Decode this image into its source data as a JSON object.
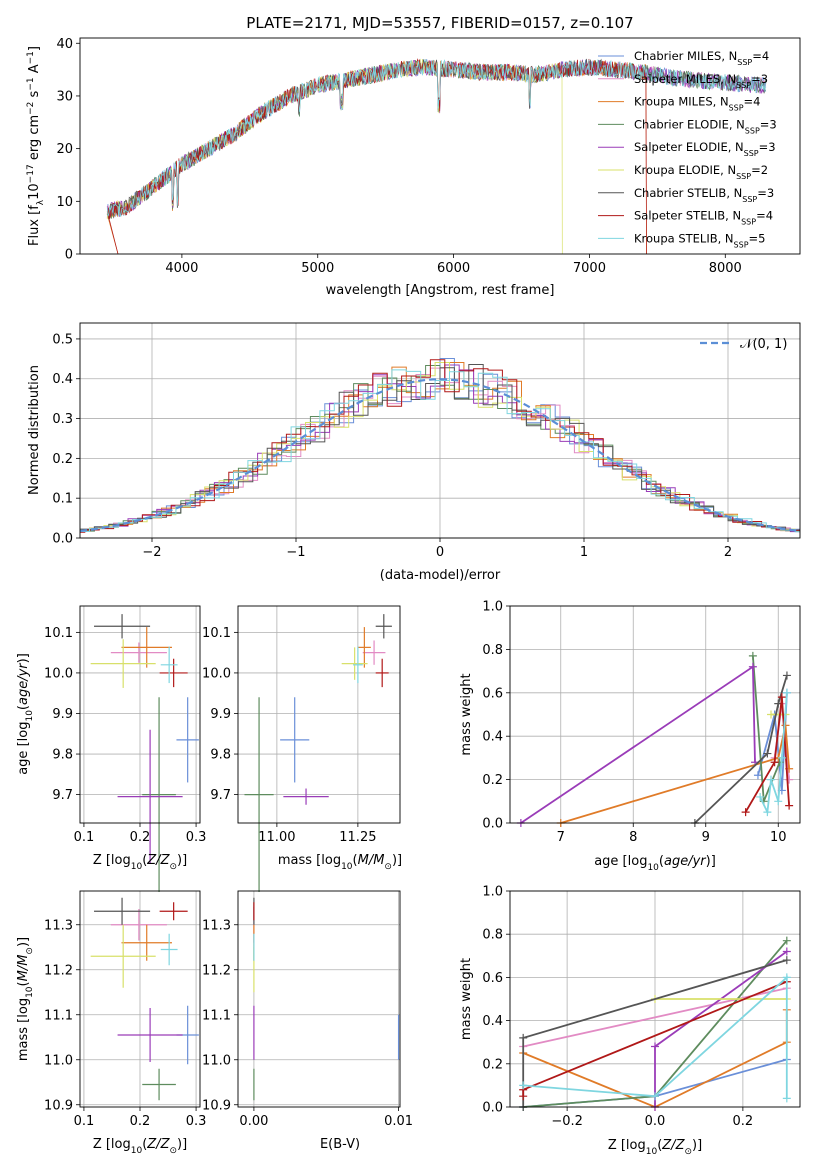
{
  "figure_title": "PLATE=2171, MJD=53557, FIBERID=0157, z=0.107",
  "legend_models": [
    {
      "name": "Chabrier MILES, N$_{SSP}$=4",
      "label": "Chabrier MILES, N",
      "sub": "SSP",
      "suffix": "=4",
      "color": "#6a8fd8"
    },
    {
      "name": "Salpeter MILES, N$_{SSP}$=3",
      "label": "Salpeter MILES, N",
      "sub": "SSP",
      "suffix": "=3",
      "color": "#e28bc4"
    },
    {
      "name": "Kroupa MILES, N$_{SSP}$=4",
      "label": "Kroupa MILES, N",
      "sub": "SSP",
      "suffix": "=4",
      "color": "#e07b28"
    },
    {
      "name": "Chabrier ELODIE, N$_{SSP}$=3",
      "label": "Chabrier ELODIE, N",
      "sub": "SSP",
      "suffix": "=3",
      "color": "#5e8c5e"
    },
    {
      "name": "Salpeter ELODIE, N$_{SSP}$=3",
      "label": "Salpeter ELODIE, N",
      "sub": "SSP",
      "suffix": "=3",
      "color": "#9a3cb8"
    },
    {
      "name": "Kroupa ELODIE, N$_{SSP}$=2",
      "label": "Kroupa ELODIE, N",
      "sub": "SSP",
      "suffix": "=2",
      "color": "#d8e06a"
    },
    {
      "name": "Chabrier STELIB, N$_{SSP}$=3",
      "label": "Chabrier STELIB, N",
      "sub": "SSP",
      "suffix": "=3",
      "color": "#555555"
    },
    {
      "name": "Salpeter STELIB, N$_{SSP}$=4",
      "label": "Salpeter STELIB, N",
      "sub": "SSP",
      "suffix": "=4",
      "color": "#b01818"
    },
    {
      "name": "Kroupa STELIB, N$_{SSP}$=5",
      "label": "Kroupa STELIB, N",
      "sub": "SSP",
      "suffix": "=5",
      "color": "#7fd6e0"
    }
  ],
  "chart_data": [
    {
      "id": "spectrum",
      "type": "line",
      "xlabel": "wavelength [Angstrom, rest frame]",
      "ylabel": "Flux [f$_\\lambda$10$^{-17}$ erg cm$^{-2}$ s$^{-1}$ A$^{-1}$]",
      "ylabel_parts": [
        "Flux [f",
        "λ",
        "10",
        "−17",
        " erg cm",
        "−2",
        " s",
        "−1",
        " A",
        "−1",
        "]"
      ],
      "xlim": [
        3250,
        8550
      ],
      "ylim": [
        0,
        41
      ],
      "xticks": [
        4000,
        5000,
        6000,
        7000,
        8000
      ],
      "yticks": [
        0,
        10,
        20,
        30,
        40
      ],
      "continuum": {
        "x": [
          3450,
          3600,
          3800,
          4000,
          4200,
          4400,
          4600,
          4800,
          5000,
          5200,
          5400,
          5600,
          5800,
          6000,
          6200,
          6400,
          6600,
          6800,
          7000,
          7200,
          7400,
          7600,
          7800,
          8000,
          8300
        ],
        "y": [
          8,
          9,
          13,
          17,
          20,
          23,
          27,
          30,
          32,
          33,
          34,
          35,
          35.5,
          35,
          34.5,
          34.5,
          34,
          35,
          35.5,
          35,
          34.5,
          33.5,
          33,
          32.5,
          32
        ]
      },
      "grid": false
    },
    {
      "id": "residuals",
      "type": "histogram",
      "xlabel": "(data-model)/error",
      "ylabel": "Normed distribution",
      "xlim": [
        -2.5,
        2.5
      ],
      "ylim": [
        0,
        0.54
      ],
      "xticks": [
        -2,
        -1,
        0,
        1,
        2
      ],
      "xticklabels": [
        "−2",
        "−1",
        "0",
        "1",
        "2"
      ],
      "yticks": [
        0,
        0.1,
        0.2,
        0.3,
        0.4,
        0.5
      ],
      "yticklabels": [
        "0.0",
        "0.1",
        "0.2",
        "0.3",
        "0.4",
        "0.5"
      ],
      "bin_width": 0.1,
      "reference_curve": {
        "label": "𝒩(0, 1)",
        "color": "#5b8fd6",
        "style": "dashed"
      },
      "legend_placement": "top-right",
      "grid": true
    },
    {
      "id": "age_vs_Z",
      "type": "scatter",
      "xlabel": "Z [log$_{10}$(Z/Z$_\\odot$)]",
      "ylabel": "age  [log$_{10}$(age/yr)]",
      "xlim": [
        0.093,
        0.307
      ],
      "ylim": [
        9.63,
        10.165
      ],
      "xticks": [
        0.1,
        0.2,
        0.3
      ],
      "xticklabels": [
        "0.1",
        "0.2",
        "0.3"
      ],
      "yticks": [
        9.7,
        9.8,
        9.9,
        10.0,
        10.1
      ],
      "yticklabels": [
        "9.7",
        "9.8",
        "9.9",
        "10.0",
        "10.1"
      ],
      "points": [
        {
          "x": 0.285,
          "y": 9.835,
          "xerr": 0.02,
          "yerr": 0.105,
          "color": "#6a8fd8"
        },
        {
          "x": 0.198,
          "y": 10.05,
          "xerr": 0.05,
          "yerr": 0.025,
          "color": "#e28bc4"
        },
        {
          "x": 0.212,
          "y": 10.063,
          "xerr": 0.045,
          "yerr": 0.05,
          "color": "#e07b28"
        },
        {
          "x": 0.234,
          "y": 9.7,
          "xerr": 0.03,
          "yerr": 0.24,
          "color": "#5e8c5e"
        },
        {
          "x": 0.218,
          "y": 9.695,
          "xerr": 0.058,
          "yerr": 0.165,
          "color": "#9a3cb8"
        },
        {
          "x": 0.17,
          "y": 10.023,
          "xerr": 0.058,
          "yerr": 0.06,
          "color": "#d8e06a"
        },
        {
          "x": 0.168,
          "y": 10.115,
          "xerr": 0.05,
          "yerr": 0.03,
          "color": "#555555"
        },
        {
          "x": 0.26,
          "y": 10.0,
          "xerr": 0.025,
          "yerr": 0.035,
          "color": "#b01818"
        },
        {
          "x": 0.252,
          "y": 10.02,
          "xerr": 0.015,
          "yerr": 0.045,
          "color": "#7fd6e0"
        }
      ],
      "grid": true
    },
    {
      "id": "age_vs_mass",
      "type": "scatter",
      "xlabel": "mass [log$_{10}$(M/M$_\\odot$)]",
      "ylabel": "",
      "xlim": [
        10.88,
        11.38
      ],
      "ylim": [
        9.63,
        10.165
      ],
      "xticks": [
        11.0,
        11.25
      ],
      "xticklabels": [
        "11.00",
        "11.25"
      ],
      "yticks": [
        9.7,
        9.8,
        9.9,
        10.0,
        10.1
      ],
      "yticklabels": [
        "9.7",
        "9.8",
        "9.9",
        "10.0",
        "10.1"
      ],
      "points": [
        {
          "x": 11.055,
          "y": 9.835,
          "xerr": 0.045,
          "yerr": 0.105,
          "color": "#6a8fd8"
        },
        {
          "x": 11.3,
          "y": 10.05,
          "xerr": 0.035,
          "yerr": 0.03,
          "color": "#e28bc4"
        },
        {
          "x": 11.27,
          "y": 10.063,
          "xerr": 0.02,
          "yerr": 0.05,
          "color": "#e07b28"
        },
        {
          "x": 10.945,
          "y": 9.7,
          "xerr": 0.045,
          "yerr": 0.24,
          "color": "#5e8c5e"
        },
        {
          "x": 11.09,
          "y": 9.695,
          "xerr": 0.07,
          "yerr": 0.02,
          "color": "#9a3cb8"
        },
        {
          "x": 11.24,
          "y": 10.023,
          "xerr": 0.04,
          "yerr": 0.04,
          "color": "#d8e06a"
        },
        {
          "x": 11.33,
          "y": 10.115,
          "xerr": 0.025,
          "yerr": 0.03,
          "color": "#555555"
        },
        {
          "x": 11.325,
          "y": 10.0,
          "xerr": 0.02,
          "yerr": 0.035,
          "color": "#b01818"
        },
        {
          "x": 11.25,
          "y": 10.02,
          "xerr": 0.015,
          "yerr": 0.045,
          "color": "#7fd6e0"
        }
      ],
      "grid": true
    },
    {
      "id": "weight_vs_age",
      "type": "line",
      "xlabel": "age  [log$_{10}$(age/yr)]",
      "ylabel": "mass weight",
      "xlim": [
        6.3,
        10.3
      ],
      "ylim": [
        0,
        1.0
      ],
      "xticks": [
        7,
        8,
        9,
        10
      ],
      "xticklabels": [
        "7",
        "8",
        "9",
        "10"
      ],
      "yticks": [
        0,
        0.2,
        0.4,
        0.6,
        0.8,
        1.0
      ],
      "yticklabels": [
        "0.0",
        "0.2",
        "0.4",
        "0.6",
        "0.8",
        "1.0"
      ],
      "series": [
        {
          "color": "#6a8fd8",
          "x": [
            9.72,
            9.95,
            10.05,
            10.12
          ],
          "y": [
            0.22,
            0.5,
            0.15,
            0.6
          ]
        },
        {
          "color": "#e28bc4",
          "x": [
            9.95,
            10.05,
            10.15
          ],
          "y": [
            0.3,
            0.55,
            0.2
          ]
        },
        {
          "color": "#e07b28",
          "x": [
            7.0,
            10.0,
            10.1,
            10.15
          ],
          "y": [
            0.0,
            0.3,
            0.45,
            0.25
          ]
        },
        {
          "color": "#5e8c5e",
          "x": [
            9.65,
            9.8,
            10.02
          ],
          "y": [
            0.77,
            0.1,
            0.28
          ]
        },
        {
          "color": "#9a3cb8",
          "x": [
            6.45,
            9.65,
            9.68
          ],
          "y": [
            0.0,
            0.72,
            0.28
          ]
        },
        {
          "color": "#d8e06a",
          "x": [
            9.9,
            10.1
          ],
          "y": [
            0.5,
            0.5
          ]
        },
        {
          "color": "#555555",
          "x": [
            8.85,
            9.85,
            10.0,
            10.12
          ],
          "y": [
            0.0,
            0.32,
            0.55,
            0.68
          ]
        },
        {
          "color": "#b01818",
          "x": [
            9.55,
            9.95,
            10.05,
            10.15
          ],
          "y": [
            0.05,
            0.28,
            0.58,
            0.08
          ]
        },
        {
          "color": "#7fd6e0",
          "x": [
            9.75,
            9.85,
            9.9,
            10.0,
            10.05,
            10.12
          ],
          "y": [
            0.12,
            0.05,
            0.2,
            0.1,
            0.3,
            0.6
          ]
        }
      ],
      "grid": true
    },
    {
      "id": "mass_vs_Z",
      "type": "scatter",
      "xlabel": "Z [log$_{10}$(Z/Z$_\\odot$)]",
      "ylabel": "mass [log$_{10}$(M/M$_\\odot$)]",
      "xlim": [
        0.093,
        0.307
      ],
      "ylim": [
        10.895,
        11.375
      ],
      "xticks": [
        0.1,
        0.2,
        0.3
      ],
      "xticklabels": [
        "0.1",
        "0.2",
        "0.3"
      ],
      "yticks": [
        10.9,
        11.0,
        11.1,
        11.2,
        11.3
      ],
      "yticklabels": [
        "10.9",
        "11.0",
        "11.1",
        "11.2",
        "11.3"
      ],
      "points": [
        {
          "x": 0.285,
          "y": 11.055,
          "xerr": 0.02,
          "yerr": 0.065,
          "color": "#6a8fd8"
        },
        {
          "x": 0.198,
          "y": 11.3,
          "xerr": 0.05,
          "yerr": 0.035,
          "color": "#e28bc4"
        },
        {
          "x": 0.212,
          "y": 11.26,
          "xerr": 0.045,
          "yerr": 0.04,
          "color": "#e07b28"
        },
        {
          "x": 0.234,
          "y": 10.945,
          "xerr": 0.03,
          "yerr": 0.035,
          "color": "#5e8c5e"
        },
        {
          "x": 0.218,
          "y": 11.055,
          "xerr": 0.058,
          "yerr": 0.06,
          "color": "#9a3cb8"
        },
        {
          "x": 0.17,
          "y": 11.23,
          "xerr": 0.058,
          "yerr": 0.07,
          "color": "#d8e06a"
        },
        {
          "x": 0.168,
          "y": 11.33,
          "xerr": 0.05,
          "yerr": 0.03,
          "color": "#555555"
        },
        {
          "x": 0.26,
          "y": 11.33,
          "xerr": 0.025,
          "yerr": 0.02,
          "color": "#b01818"
        },
        {
          "x": 0.252,
          "y": 11.245,
          "xerr": 0.015,
          "yerr": 0.035,
          "color": "#7fd6e0"
        }
      ],
      "grid": true
    },
    {
      "id": "mass_vs_ebv",
      "type": "scatter",
      "xlabel": "E(B-V)",
      "ylabel": "",
      "xlim": [
        -0.0011,
        0.0101
      ],
      "ylim": [
        10.895,
        11.375
      ],
      "xticks": [
        0,
        0.01
      ],
      "xticklabels": [
        "0.00",
        "0.01"
      ],
      "yticks": [
        10.9,
        11.0,
        11.1,
        11.2,
        11.3
      ],
      "yticklabels": [
        "10.9",
        "11.0",
        "11.1",
        "11.2",
        "11.3"
      ],
      "points": [
        {
          "x": 0.01,
          "y": 11.05,
          "xerr": 0,
          "yerr": 0.05,
          "color": "#6a8fd8"
        },
        {
          "x": 0.0,
          "y": 11.3,
          "xerr": 0,
          "yerr": 0.04,
          "color": "#e28bc4"
        },
        {
          "x": 0.0,
          "y": 11.26,
          "xerr": 0,
          "yerr": 0.04,
          "color": "#e07b28"
        },
        {
          "x": 0.0,
          "y": 10.945,
          "xerr": 0,
          "yerr": 0.035,
          "color": "#5e8c5e"
        },
        {
          "x": 0.0,
          "y": 11.06,
          "xerr": 0,
          "yerr": 0.06,
          "color": "#9a3cb8"
        },
        {
          "x": 0.0,
          "y": 11.2,
          "xerr": 0,
          "yerr": 0.05,
          "color": "#d8e06a"
        },
        {
          "x": 0.0,
          "y": 11.33,
          "xerr": 0,
          "yerr": 0.03,
          "color": "#555555"
        },
        {
          "x": 0.0,
          "y": 11.33,
          "xerr": 0,
          "yerr": 0.02,
          "color": "#b01818"
        },
        {
          "x": 0.0,
          "y": 11.25,
          "xerr": 0,
          "yerr": 0.03,
          "color": "#7fd6e0"
        }
      ],
      "grid": true
    },
    {
      "id": "weight_vs_Z",
      "type": "line",
      "xlabel": "Z [log$_{10}$(Z/Z$_\\odot$)]",
      "ylabel": "mass weight",
      "xlim": [
        -0.33,
        0.33
      ],
      "ylim": [
        0,
        1.0
      ],
      "xticks": [
        -0.2,
        0.0,
        0.2
      ],
      "xticklabels": [
        "−0.2",
        "0.0",
        "0.2"
      ],
      "yticks": [
        0,
        0.2,
        0.4,
        0.6,
        0.8,
        1.0
      ],
      "yticklabels": [
        "0.0",
        "0.2",
        "0.4",
        "0.6",
        "0.8",
        "1.0"
      ],
      "series": [
        {
          "color": "#6a8fd8",
          "x": [
            -0.3,
            0.0,
            0.3
          ],
          "y": [
            0.0,
            0.05,
            0.22
          ]
        },
        {
          "color": "#e28bc4",
          "x": [
            -0.3,
            0.3
          ],
          "y": [
            0.28,
            0.55
          ]
        },
        {
          "color": "#e07b28",
          "x": [
            -0.3,
            0.0,
            0.3,
            0.3
          ],
          "y": [
            0.25,
            0.0,
            0.3,
            0.45
          ]
        },
        {
          "color": "#5e8c5e",
          "x": [
            -0.3,
            0.0,
            0.3
          ],
          "y": [
            0.0,
            0.05,
            0.77
          ]
        },
        {
          "color": "#9a3cb8",
          "x": [
            0.0,
            0.0,
            0.3
          ],
          "y": [
            0.0,
            0.28,
            0.72
          ]
        },
        {
          "color": "#d8e06a",
          "x": [
            0.0,
            0.3
          ],
          "y": [
            0.5,
            0.5
          ]
        },
        {
          "color": "#555555",
          "x": [
            -0.3,
            -0.3,
            0.3
          ],
          "y": [
            0.0,
            0.32,
            0.68
          ]
        },
        {
          "color": "#b01818",
          "x": [
            -0.3,
            -0.3,
            0.3
          ],
          "y": [
            0.05,
            0.08,
            0.58
          ]
        },
        {
          "color": "#7fd6e0",
          "x": [
            -0.3,
            0.0,
            0.3,
            0.3
          ],
          "y": [
            0.1,
            0.05,
            0.6,
            0.04
          ]
        }
      ],
      "grid": true
    }
  ]
}
